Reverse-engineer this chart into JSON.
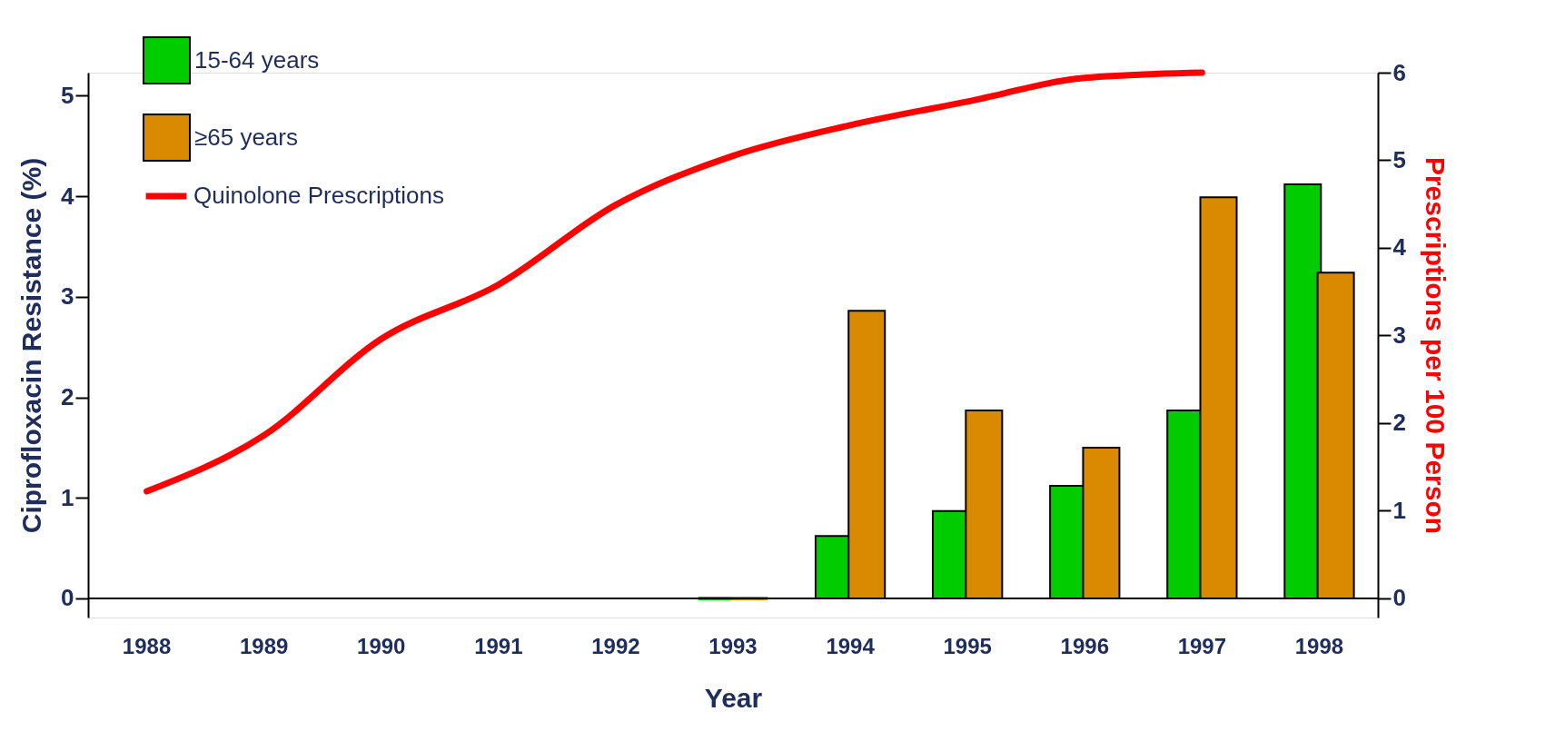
{
  "chart_data": {
    "type": "bar",
    "xlabel": "Year",
    "ylabel": "Ciprofloxacin Resistance (%)",
    "y2label": "Prescriptions per 100 Person",
    "categories": [
      "1988",
      "1989",
      "1990",
      "1991",
      "1992",
      "1993",
      "1994",
      "1995",
      "1996",
      "1997",
      "1998"
    ],
    "series": [
      {
        "name": "15-64 years",
        "color": "#00cc00",
        "values": [
          null,
          null,
          null,
          null,
          null,
          0,
          0.62,
          0.87,
          1.12,
          1.87,
          4.12
        ]
      },
      {
        "name": "≥65 years",
        "color": "#d98a00",
        "values": [
          null,
          null,
          null,
          null,
          null,
          0,
          2.86,
          1.87,
          1.5,
          3.99,
          3.24
        ]
      },
      {
        "name": "Quinolone Prescriptions",
        "type": "line",
        "axis": "y2",
        "color": "#ff0000",
        "values": [
          1.22,
          1.86,
          2.96,
          3.58,
          4.49,
          5.05,
          5.4,
          5.67,
          5.94,
          6.0,
          null
        ]
      }
    ],
    "ylim": [
      -0.19,
      5.23
    ],
    "yticks": [
      0,
      1,
      2,
      3,
      4,
      5
    ],
    "y2lim": [
      -0.22,
      6
    ],
    "y2ticks": [
      0,
      1,
      2,
      3,
      4,
      5,
      6
    ],
    "ref_lines": [
      {
        "axis": "y",
        "value": 0,
        "color": "#000000"
      }
    ],
    "legend": "top left",
    "grid": false
  }
}
